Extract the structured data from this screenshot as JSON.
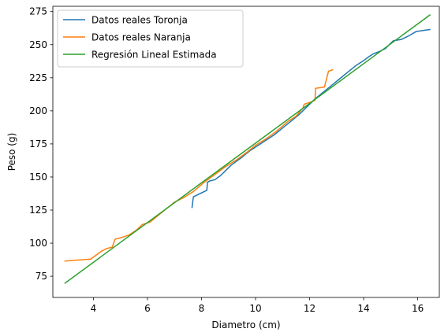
{
  "chart_data": {
    "type": "line",
    "xlabel": "Diametro (cm)",
    "ylabel": "Peso (g)",
    "xlim": [
      2.5,
      16.8
    ],
    "ylim": [
      59,
      279
    ],
    "xticks": [
      4,
      6,
      8,
      10,
      12,
      14,
      16
    ],
    "yticks": [
      75,
      100,
      125,
      150,
      175,
      200,
      225,
      250,
      275
    ],
    "grid": false,
    "legend_position": "upper-left",
    "series": [
      {
        "name": "Datos reales Toronja",
        "color": "#1f77b4",
        "points": [
          [
            7.65,
            127
          ],
          [
            7.7,
            135
          ],
          [
            7.9,
            137
          ],
          [
            8.2,
            140
          ],
          [
            8.22,
            146
          ],
          [
            8.3,
            147
          ],
          [
            8.5,
            148
          ],
          [
            8.7,
            151
          ],
          [
            8.9,
            155
          ],
          [
            9.1,
            159
          ],
          [
            9.3,
            162
          ],
          [
            9.5,
            165
          ],
          [
            9.8,
            170
          ],
          [
            10.1,
            174
          ],
          [
            10.4,
            178
          ],
          [
            10.7,
            182
          ],
          [
            11.0,
            187
          ],
          [
            11.3,
            192
          ],
          [
            11.6,
            197
          ],
          [
            11.9,
            203
          ],
          [
            12.2,
            209
          ],
          [
            12.5,
            214
          ],
          [
            12.8,
            219
          ],
          [
            13.1,
            224
          ],
          [
            13.4,
            229
          ],
          [
            13.7,
            234
          ],
          [
            14.0,
            238
          ],
          [
            14.2,
            241
          ],
          [
            14.35,
            243
          ],
          [
            14.6,
            245
          ],
          [
            14.8,
            247
          ],
          [
            15.0,
            251
          ],
          [
            15.1,
            253
          ],
          [
            15.4,
            254
          ],
          [
            15.7,
            257
          ],
          [
            15.95,
            260
          ],
          [
            16.45,
            261.5
          ]
        ]
      },
      {
        "name": "Datos reales Naranja",
        "color": "#ff7f0e",
        "points": [
          [
            2.95,
            86.5
          ],
          [
            3.9,
            88
          ],
          [
            4.3,
            94
          ],
          [
            4.5,
            96
          ],
          [
            4.7,
            97
          ],
          [
            4.8,
            103
          ],
          [
            5.0,
            104
          ],
          [
            5.3,
            106
          ],
          [
            5.6,
            110
          ],
          [
            5.8,
            114
          ],
          [
            6.1,
            116
          ],
          [
            6.4,
            121
          ],
          [
            6.7,
            126
          ],
          [
            7.0,
            131
          ],
          [
            7.3,
            134
          ],
          [
            7.7,
            139
          ],
          [
            8.1,
            146
          ],
          [
            8.5,
            152
          ],
          [
            8.9,
            158
          ],
          [
            9.3,
            163
          ],
          [
            9.7,
            169
          ],
          [
            10.0,
            174
          ],
          [
            10.4,
            179
          ],
          [
            10.8,
            185
          ],
          [
            11.2,
            192
          ],
          [
            11.5,
            196
          ],
          [
            11.75,
            202
          ],
          [
            11.8,
            205
          ],
          [
            12.1,
            207
          ],
          [
            12.2,
            208
          ],
          [
            12.22,
            217
          ],
          [
            12.55,
            218
          ],
          [
            12.7,
            230
          ],
          [
            12.85,
            231
          ]
        ]
      },
      {
        "name": "Regresión Lineal Estimada",
        "color": "#2ca02c",
        "points": [
          [
            2.95,
            69.8
          ],
          [
            16.45,
            272.4
          ]
        ]
      }
    ]
  }
}
